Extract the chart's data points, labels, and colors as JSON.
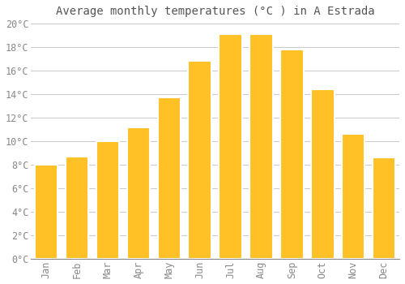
{
  "title": "Average monthly temperatures (°C ) in A Estrada",
  "months": [
    "Jan",
    "Feb",
    "Mar",
    "Apr",
    "May",
    "Jun",
    "Jul",
    "Aug",
    "Sep",
    "Oct",
    "Nov",
    "Dec"
  ],
  "values": [
    8.0,
    8.7,
    10.0,
    11.2,
    13.7,
    16.8,
    19.1,
    19.1,
    17.8,
    14.4,
    10.6,
    8.6
  ],
  "bar_color": "#FFC125",
  "bar_edge_color": "#FFFFFF",
  "background_color": "#FFFFFF",
  "grid_color": "#CCCCCC",
  "text_color": "#888888",
  "title_color": "#555555",
  "ylim": [
    0,
    20
  ],
  "yticks": [
    0,
    2,
    4,
    6,
    8,
    10,
    12,
    14,
    16,
    18,
    20
  ],
  "title_fontsize": 10,
  "tick_fontsize": 8.5,
  "bar_width": 0.75
}
